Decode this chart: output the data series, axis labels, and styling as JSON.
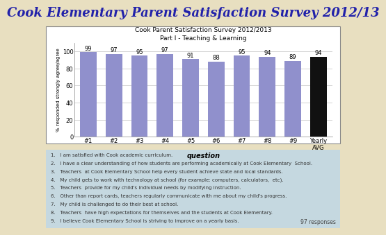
{
  "main_title": "Cook Elementary Parent Satisfaction Survey 2012/13",
  "chart_title_line1": "Cook Parent Satisfaction Survey 2012/2013",
  "chart_title_line2": "Part I - Teaching & Learning",
  "categories": [
    "#1",
    "#2",
    "#3",
    "#4",
    "#5",
    "#6",
    "#7",
    "#8",
    "#9",
    "Yearly\nAVG"
  ],
  "values": [
    99,
    97,
    95,
    97,
    91,
    88,
    95,
    94,
    89,
    94
  ],
  "bar_colors": [
    "#9090cc",
    "#9090cc",
    "#9090cc",
    "#9090cc",
    "#9090cc",
    "#9090cc",
    "#9090cc",
    "#9090cc",
    "#9090cc",
    "#111111"
  ],
  "xlabel": "question",
  "ylabel": "% responded strongly agree/agree",
  "ylim": [
    0,
    110
  ],
  "yticks": [
    0,
    20,
    40,
    60,
    80,
    100
  ],
  "background_outer": "#e8dfc0",
  "background_chart": "#ffffff",
  "background_bottom": "#c5d8e0",
  "legend_text": [
    "1.   I am satisfied with Cook academic curriculum.",
    "2.   I have a clear understanding of how students are performing academically at Cook Elementary  School.",
    "3.   Teachers  at Cook Elementary School help every student achieve state and local standards.",
    "4.   My child gets to work with technology at school (for example: computers, calculators,  etc).",
    "5.   Teachers  provide for my child's individual needs by modifying instruction.",
    "6.   Other than report cards, teachers regularly communicate with me about my child's progress.",
    "7.   My child is challenged to do their best at school.",
    "8.   Teachers  have high expectations for themselves and the students at Cook Elementary.",
    "9.   I believe Cook Elementary School is striving to improve on a yearly basis."
  ],
  "responses_text": "97 responses",
  "title_color": "#2222aa",
  "title_fontsize": 13,
  "chart_title_fontsize": 6.5,
  "bar_label_fontsize": 6,
  "axis_fontsize": 6,
  "legend_fontsize": 5,
  "ylabel_fontsize": 5
}
